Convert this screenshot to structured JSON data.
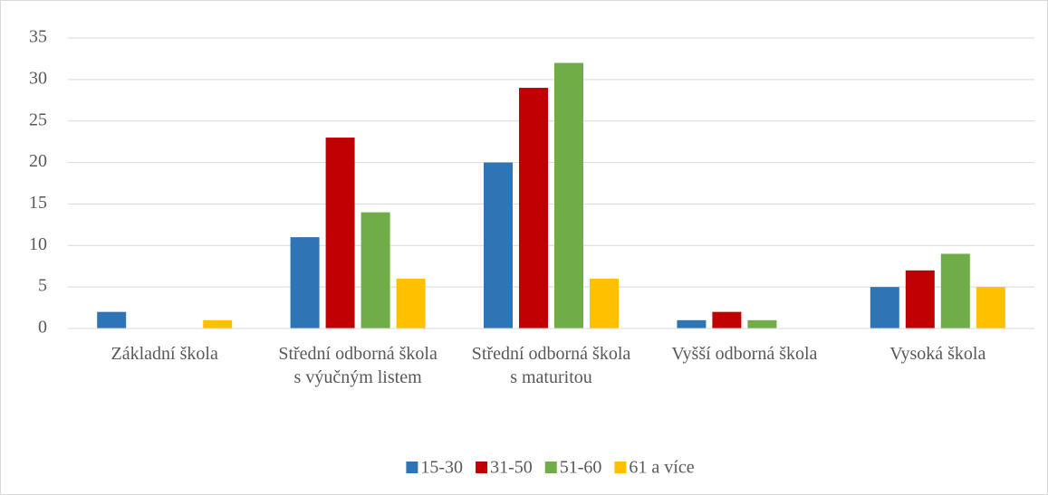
{
  "chart_data": {
    "type": "bar",
    "categories": [
      "Základní škola",
      "Střední odborná škola  s výučným listem",
      "Střední odborná škola s maturitou",
      "Vyšší odborná škola",
      "Vysoká škola"
    ],
    "series": [
      {
        "name": "15-30",
        "color": "#2e75b6",
        "values": [
          2,
          11,
          20,
          1,
          5
        ]
      },
      {
        "name": "31-50",
        "color": "#c00000",
        "values": [
          0,
          23,
          29,
          2,
          7
        ]
      },
      {
        "name": "51-60",
        "color": "#70ad47",
        "values": [
          0,
          14,
          32,
          1,
          9
        ]
      },
      {
        "name": "61 a více",
        "color": "#ffc000",
        "values": [
          1,
          6,
          6,
          0,
          5
        ]
      }
    ],
    "ylim": [
      0,
      35
    ],
    "yticks": [
      0,
      5,
      10,
      15,
      20,
      25,
      30,
      35
    ],
    "grid": true,
    "legend": "bottom"
  }
}
